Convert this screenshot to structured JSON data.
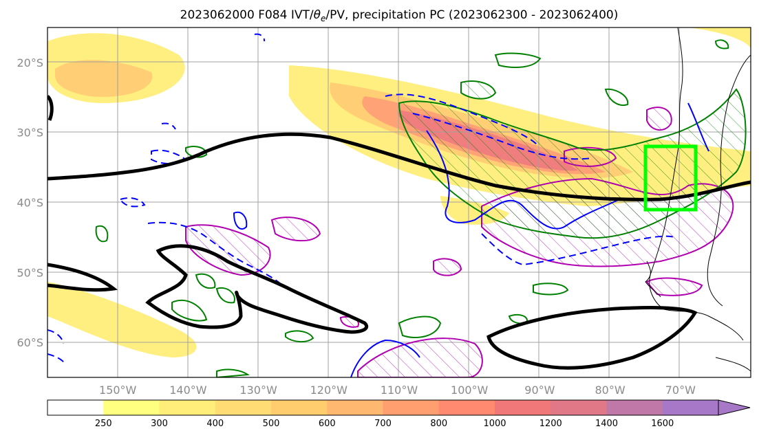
{
  "title": {
    "prefix": "2023062000 F084 IVT/",
    "theta": "θ",
    "theta_sub": "e",
    "suffix": "/PV, precipitation PC (2023062300 - 2023062400)"
  },
  "map": {
    "lon_min": -160,
    "lon_max": -60,
    "lat_min": -65,
    "lat_max": -15,
    "lat_ticks": [
      {
        "value": -20,
        "label": "20°S"
      },
      {
        "value": -30,
        "label": "30°S"
      },
      {
        "value": -40,
        "label": "40°S"
      },
      {
        "value": -50,
        "label": "50°S"
      },
      {
        "value": -60,
        "label": "60°S"
      }
    ],
    "lon_ticks": [
      {
        "value": -150,
        "label": "150°W"
      },
      {
        "value": -140,
        "label": "140°W"
      },
      {
        "value": -130,
        "label": "130°W"
      },
      {
        "value": -120,
        "label": "120°W"
      },
      {
        "value": -110,
        "label": "110°W"
      },
      {
        "value": -100,
        "label": "100°W"
      },
      {
        "value": -90,
        "label": "90°W"
      },
      {
        "value": -80,
        "label": "80°W"
      },
      {
        "value": -70,
        "label": "70°W"
      }
    ],
    "target_box": {
      "lon_min": -75,
      "lon_max": -68,
      "lat_min": -41,
      "lat_max": -32,
      "color": "#00ff00"
    },
    "contour_colors": {
      "pv": "#000000",
      "theta_e": "#0000ff",
      "precip": "#008000",
      "ivt_pc": "#b000b0"
    }
  },
  "colorbar": {
    "levels": [
      {
        "label": "",
        "color": "#ffffff"
      },
      {
        "label": "250",
        "color": "#ffff80"
      },
      {
        "label": "300",
        "color": "#ffee7a"
      },
      {
        "label": "400",
        "color": "#ffdd74"
      },
      {
        "label": "500",
        "color": "#ffcc6e"
      },
      {
        "label": "600",
        "color": "#ffb870"
      },
      {
        "label": "700",
        "color": "#ff9f70"
      },
      {
        "label": "800",
        "color": "#ff8a70"
      },
      {
        "label": "1000",
        "color": "#f07878"
      },
      {
        "label": "1200",
        "color": "#e07888"
      },
      {
        "label": "1400",
        "color": "#c078a8"
      },
      {
        "label": "1600",
        "color": "#a878c8"
      }
    ],
    "extend_color": "#a878c8"
  }
}
